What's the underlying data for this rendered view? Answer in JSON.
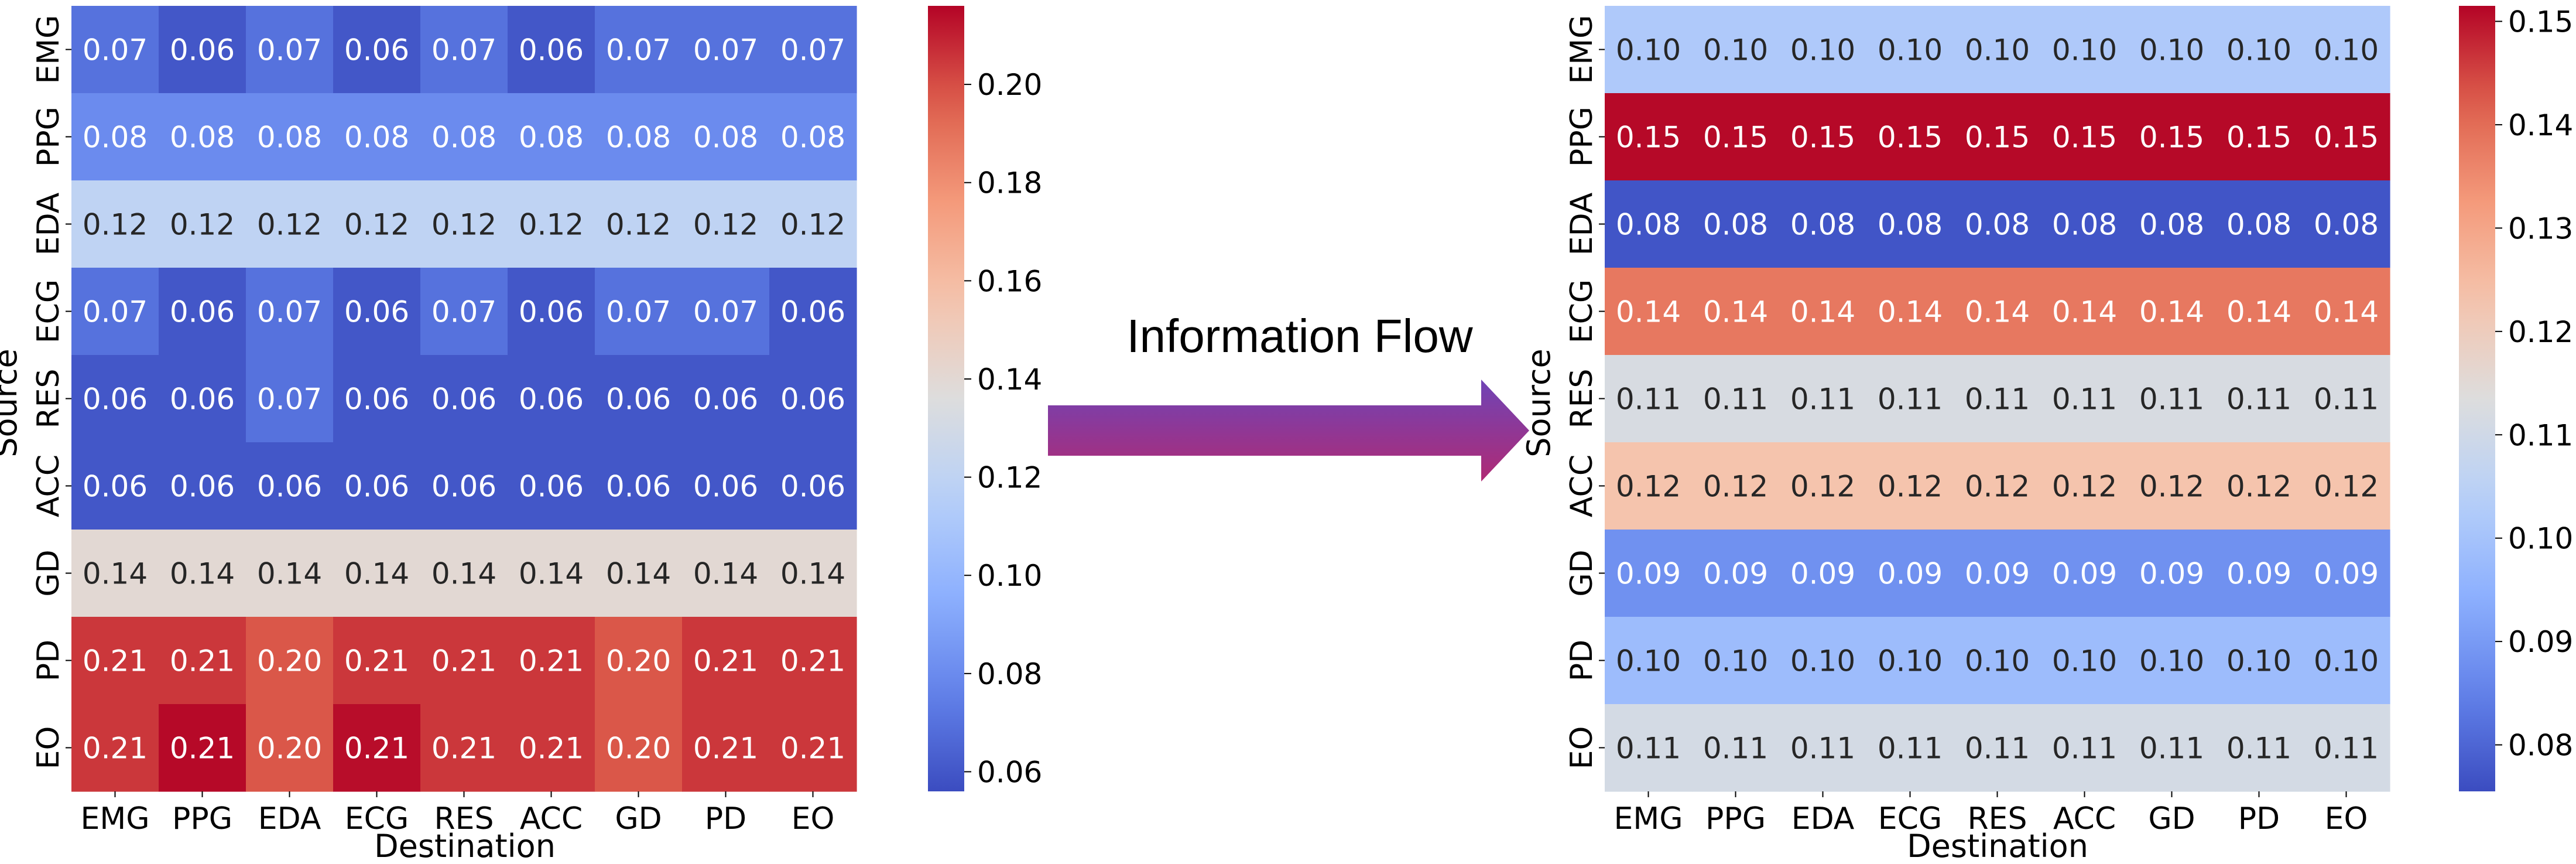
{
  "flow_label": "Information Flow",
  "chart_data": [
    {
      "type": "heatmap",
      "colormap": "coolwarm",
      "row_axis_label": "Source",
      "col_axis_label": "Destination",
      "rows": [
        "EMG",
        "PPG",
        "EDA",
        "ECG",
        "RES",
        "ACC",
        "GD",
        "PD",
        "EO"
      ],
      "columns": [
        "EMG",
        "PPG",
        "EDA",
        "ECG",
        "RES",
        "ACC",
        "GD",
        "PD",
        "EO"
      ],
      "values": [
        [
          0.07,
          0.06,
          0.07,
          0.06,
          0.07,
          0.06,
          0.07,
          0.07,
          0.07
        ],
        [
          0.08,
          0.08,
          0.08,
          0.08,
          0.08,
          0.08,
          0.08,
          0.08,
          0.08
        ],
        [
          0.12,
          0.12,
          0.12,
          0.12,
          0.12,
          0.12,
          0.12,
          0.12,
          0.12
        ],
        [
          0.07,
          0.06,
          0.07,
          0.06,
          0.07,
          0.06,
          0.07,
          0.07,
          0.06
        ],
        [
          0.06,
          0.06,
          0.07,
          0.06,
          0.06,
          0.06,
          0.06,
          0.06,
          0.06
        ],
        [
          0.06,
          0.06,
          0.06,
          0.06,
          0.06,
          0.06,
          0.06,
          0.06,
          0.06
        ],
        [
          0.14,
          0.14,
          0.14,
          0.14,
          0.14,
          0.14,
          0.14,
          0.14,
          0.14
        ],
        [
          0.205,
          0.205,
          0.198,
          0.205,
          0.205,
          0.205,
          0.198,
          0.205,
          0.205
        ],
        [
          0.205,
          0.215,
          0.198,
          0.214,
          0.205,
          0.205,
          0.198,
          0.205,
          0.205
        ]
      ],
      "cell_labels": [
        [
          "0.07",
          "0.06",
          "0.07",
          "0.06",
          "0.07",
          "0.06",
          "0.07",
          "0.07",
          "0.07"
        ],
        [
          "0.08",
          "0.08",
          "0.08",
          "0.08",
          "0.08",
          "0.08",
          "0.08",
          "0.08",
          "0.08"
        ],
        [
          "0.12",
          "0.12",
          "0.12",
          "0.12",
          "0.12",
          "0.12",
          "0.12",
          "0.12",
          "0.12"
        ],
        [
          "0.07",
          "0.06",
          "0.07",
          "0.06",
          "0.07",
          "0.06",
          "0.07",
          "0.07",
          "0.06"
        ],
        [
          "0.06",
          "0.06",
          "0.07",
          "0.06",
          "0.06",
          "0.06",
          "0.06",
          "0.06",
          "0.06"
        ],
        [
          "0.06",
          "0.06",
          "0.06",
          "0.06",
          "0.06",
          "0.06",
          "0.06",
          "0.06",
          "0.06"
        ],
        [
          "0.14",
          "0.14",
          "0.14",
          "0.14",
          "0.14",
          "0.14",
          "0.14",
          "0.14",
          "0.14"
        ],
        [
          "0.21",
          "0.21",
          "0.20",
          "0.21",
          "0.21",
          "0.21",
          "0.20",
          "0.21",
          "0.21"
        ],
        [
          "0.21",
          "0.21",
          "0.20",
          "0.21",
          "0.21",
          "0.21",
          "0.20",
          "0.21",
          "0.21"
        ]
      ],
      "vmin": 0.056,
      "vmax": 0.216,
      "colorbar_ticks": [
        "0.06",
        "0.08",
        "0.10",
        "0.12",
        "0.14",
        "0.16",
        "0.18",
        "0.20"
      ]
    },
    {
      "type": "heatmap",
      "colormap": "coolwarm",
      "row_axis_label": "Source",
      "col_axis_label": "Destination",
      "rows": [
        "EMG",
        "PPG",
        "EDA",
        "ECG",
        "RES",
        "ACC",
        "GD",
        "PD",
        "EO"
      ],
      "columns": [
        "EMG",
        "PPG",
        "EDA",
        "ECG",
        "RES",
        "ACC",
        "GD",
        "PD",
        "EO"
      ],
      "values": [
        [
          0.102,
          0.102,
          0.102,
          0.102,
          0.102,
          0.102,
          0.102,
          0.102,
          0.102
        ],
        [
          0.151,
          0.151,
          0.151,
          0.151,
          0.151,
          0.151,
          0.151,
          0.151,
          0.151
        ],
        [
          0.077,
          0.077,
          0.077,
          0.077,
          0.077,
          0.077,
          0.077,
          0.077,
          0.077
        ],
        [
          0.138,
          0.138,
          0.138,
          0.138,
          0.138,
          0.138,
          0.138,
          0.138,
          0.138
        ],
        [
          0.112,
          0.112,
          0.112,
          0.112,
          0.112,
          0.112,
          0.112,
          0.112,
          0.112
        ],
        [
          0.123,
          0.123,
          0.123,
          0.123,
          0.123,
          0.123,
          0.123,
          0.123,
          0.123
        ],
        [
          0.088,
          0.088,
          0.088,
          0.088,
          0.088,
          0.088,
          0.088,
          0.088,
          0.088
        ],
        [
          0.098,
          0.098,
          0.098,
          0.098,
          0.098,
          0.098,
          0.098,
          0.098,
          0.098
        ],
        [
          0.111,
          0.111,
          0.111,
          0.111,
          0.111,
          0.111,
          0.111,
          0.111,
          0.111
        ]
      ],
      "cell_labels": [
        [
          "0.10",
          "0.10",
          "0.10",
          "0.10",
          "0.10",
          "0.10",
          "0.10",
          "0.10",
          "0.10"
        ],
        [
          "0.15",
          "0.15",
          "0.15",
          "0.15",
          "0.15",
          "0.15",
          "0.15",
          "0.15",
          "0.15"
        ],
        [
          "0.08",
          "0.08",
          "0.08",
          "0.08",
          "0.08",
          "0.08",
          "0.08",
          "0.08",
          "0.08"
        ],
        [
          "0.14",
          "0.14",
          "0.14",
          "0.14",
          "0.14",
          "0.14",
          "0.14",
          "0.14",
          "0.14"
        ],
        [
          "0.11",
          "0.11",
          "0.11",
          "0.11",
          "0.11",
          "0.11",
          "0.11",
          "0.11",
          "0.11"
        ],
        [
          "0.12",
          "0.12",
          "0.12",
          "0.12",
          "0.12",
          "0.12",
          "0.12",
          "0.12",
          "0.12"
        ],
        [
          "0.09",
          "0.09",
          "0.09",
          "0.09",
          "0.09",
          "0.09",
          "0.09",
          "0.09",
          "0.09"
        ],
        [
          "0.10",
          "0.10",
          "0.10",
          "0.10",
          "0.10",
          "0.10",
          "0.10",
          "0.10",
          "0.10"
        ],
        [
          "0.11",
          "0.11",
          "0.11",
          "0.11",
          "0.11",
          "0.11",
          "0.11",
          "0.11",
          "0.11"
        ]
      ],
      "vmin": 0.0755,
      "vmax": 0.1515,
      "colorbar_ticks": [
        "0.08",
        "0.09",
        "0.10",
        "0.11",
        "0.12",
        "0.13",
        "0.14",
        "0.15"
      ]
    }
  ],
  "arrow_colors": {
    "top": "#6f44b6",
    "bottom": "#b02a74"
  }
}
